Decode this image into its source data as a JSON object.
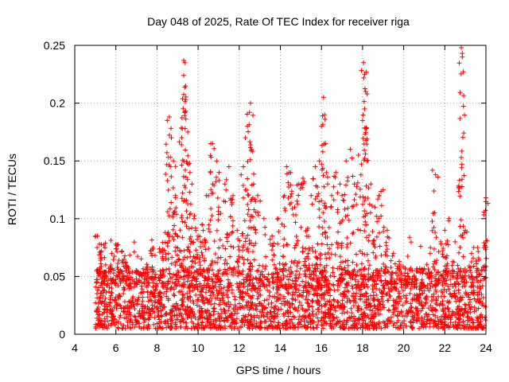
{
  "chart_data": {
    "type": "scatter",
    "title": "Day 048 of 2025, Rate Of TEC Index for receiver riga",
    "xlabel": "GPS time / hours",
    "ylabel": "ROTI / TECUs",
    "xlim": [
      4,
      24
    ],
    "ylim": [
      0,
      0.25
    ],
    "grid": true,
    "marker": "+",
    "color": "#ff0000",
    "x_ticks": [
      4,
      6,
      8,
      10,
      12,
      14,
      16,
      18,
      20,
      22,
      24
    ],
    "x_tick_labels": [
      "4",
      "6",
      "8",
      "10",
      "12",
      "14",
      "16",
      "18",
      "20",
      "22",
      "24"
    ],
    "y_ticks": [
      0,
      0.05,
      0.1,
      0.15,
      0.2,
      0.25
    ],
    "y_tick_labels": [
      "0",
      "0.05",
      "0.1",
      "0.15",
      "0.2",
      "0.25"
    ],
    "series": [
      {
        "name": "ROTI",
        "baseline_band": [
          0.005,
          0.045
        ],
        "x_range": [
          5.0,
          24.0
        ],
        "points": [
          [
            5.1,
            0.085
          ],
          [
            5.2,
            0.078
          ],
          [
            5.3,
            0.072
          ],
          [
            5.5,
            0.06
          ],
          [
            5.8,
            0.07
          ],
          [
            6.0,
            0.078
          ],
          [
            6.3,
            0.072
          ],
          [
            6.4,
            0.065
          ],
          [
            6.6,
            0.058
          ],
          [
            7.0,
            0.055
          ],
          [
            7.5,
            0.058
          ],
          [
            7.8,
            0.075
          ],
          [
            8.2,
            0.072
          ],
          [
            8.4,
            0.088
          ],
          [
            8.5,
            0.185
          ],
          [
            8.6,
            0.188
          ],
          [
            8.7,
            0.17
          ],
          [
            8.8,
            0.15
          ],
          [
            8.9,
            0.12
          ],
          [
            9.0,
            0.085
          ],
          [
            9.2,
            0.17
          ],
          [
            9.3,
            0.237
          ],
          [
            9.35,
            0.235
          ],
          [
            9.3,
            0.224
          ],
          [
            9.4,
            0.203
          ],
          [
            9.4,
            0.193
          ],
          [
            9.5,
            0.175
          ],
          [
            9.6,
            0.14
          ],
          [
            9.7,
            0.13
          ],
          [
            9.8,
            0.1
          ],
          [
            10.0,
            0.085
          ],
          [
            10.2,
            0.095
          ],
          [
            10.4,
            0.12
          ],
          [
            10.6,
            0.14
          ],
          [
            10.7,
            0.165
          ],
          [
            10.9,
            0.15
          ],
          [
            11.0,
            0.11
          ],
          [
            11.3,
            0.13
          ],
          [
            11.5,
            0.145
          ],
          [
            11.7,
            0.12
          ],
          [
            11.9,
            0.09
          ],
          [
            12.2,
            0.145
          ],
          [
            12.3,
            0.17
          ],
          [
            12.4,
            0.18
          ],
          [
            12.5,
            0.192
          ],
          [
            12.55,
            0.2
          ],
          [
            12.6,
            0.16
          ],
          [
            12.7,
            0.13
          ],
          [
            12.9,
            0.12
          ],
          [
            13.2,
            0.1
          ],
          [
            13.6,
            0.085
          ],
          [
            13.9,
            0.1
          ],
          [
            14.2,
            0.12
          ],
          [
            14.3,
            0.145
          ],
          [
            14.5,
            0.14
          ],
          [
            14.7,
            0.11
          ],
          [
            14.9,
            0.13
          ],
          [
            15.1,
            0.135
          ],
          [
            15.3,
            0.09
          ],
          [
            15.5,
            0.12
          ],
          [
            15.7,
            0.145
          ],
          [
            15.9,
            0.15
          ],
          [
            16.0,
            0.18
          ],
          [
            16.1,
            0.205
          ],
          [
            16.15,
            0.19
          ],
          [
            16.2,
            0.165
          ],
          [
            16.3,
            0.13
          ],
          [
            16.5,
            0.12
          ],
          [
            16.7,
            0.14
          ],
          [
            16.9,
            0.13
          ],
          [
            17.0,
            0.12
          ],
          [
            17.2,
            0.15
          ],
          [
            17.4,
            0.16
          ],
          [
            17.6,
            0.13
          ],
          [
            17.8,
            0.155
          ],
          [
            18.0,
            0.185
          ],
          [
            18.05,
            0.235
          ],
          [
            18.1,
            0.225
          ],
          [
            18.15,
            0.21
          ],
          [
            18.1,
            0.195
          ],
          [
            18.2,
            0.15
          ],
          [
            18.4,
            0.13
          ],
          [
            18.6,
            0.11
          ],
          [
            18.8,
            0.12
          ],
          [
            19.0,
            0.125
          ],
          [
            19.2,
            0.09
          ],
          [
            19.5,
            0.07
          ],
          [
            19.8,
            0.06
          ],
          [
            20.2,
            0.05
          ],
          [
            20.5,
            0.05
          ],
          [
            20.9,
            0.045
          ],
          [
            21.3,
            0.075
          ],
          [
            21.4,
            0.142
          ],
          [
            21.55,
            0.138
          ],
          [
            21.8,
            0.08
          ],
          [
            22.0,
            0.09
          ],
          [
            22.2,
            0.1
          ],
          [
            22.5,
            0.08
          ],
          [
            22.7,
            0.127
          ],
          [
            22.8,
            0.153
          ],
          [
            22.8,
            0.248
          ],
          [
            22.85,
            0.243
          ],
          [
            23.0,
            0.09
          ],
          [
            23.3,
            0.07
          ],
          [
            23.6,
            0.075
          ],
          [
            23.9,
            0.075
          ],
          [
            24.0,
            0.118
          ]
        ]
      }
    ]
  }
}
